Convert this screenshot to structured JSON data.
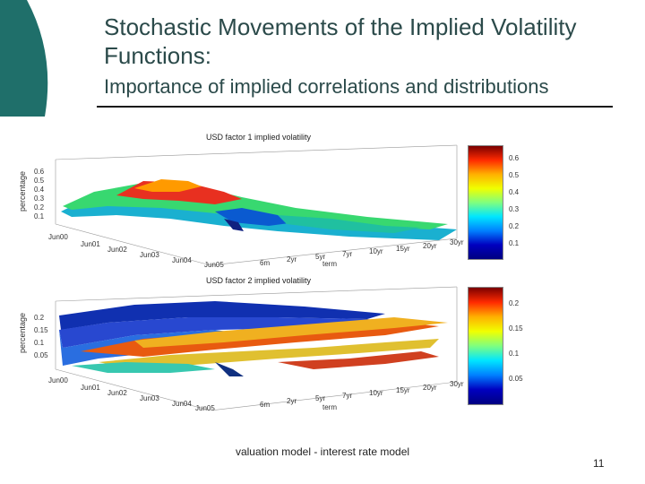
{
  "slide": {
    "title": "Stochastic Movements of the Implied Volatility Functions:",
    "subtitle": "Importance of implied correlations and distributions",
    "footer": "valuation model - interest rate model",
    "page_number": "11"
  },
  "plots": [
    {
      "title": "USD factor 1 implied volatility",
      "ylabel": "percentage",
      "xlabel": "term",
      "yticks": [
        "0.6",
        "0.5",
        "0.4",
        "0.3",
        "0.2",
        "0.1"
      ],
      "date_ticks": [
        "Jun00",
        "Jun01",
        "Jun02",
        "Jun03",
        "Jun04",
        "Jun05"
      ],
      "term_ticks": [
        "6m",
        "2yr",
        "5yr",
        "7yr",
        "10yr",
        "15yr",
        "20yr",
        "30yr"
      ],
      "colorbar_ticks": [
        "0.6",
        "0.5",
        "0.4",
        "0.3",
        "0.2",
        "0.1"
      ]
    },
    {
      "title": "USD factor 2 implied volatility",
      "ylabel": "percentage",
      "xlabel": "term",
      "yticks": [
        "0.2",
        "0.15",
        "0.1",
        "0.05"
      ],
      "date_ticks": [
        "Jun00",
        "Jun01",
        "Jun02",
        "Jun03",
        "Jun04",
        "Jun05"
      ],
      "term_ticks": [
        "6m",
        "2yr",
        "5yr",
        "7yr",
        "10yr",
        "15yr",
        "20yr",
        "30yr"
      ],
      "colorbar_ticks": [
        "0.2",
        "0.15",
        "0.1",
        "0.05"
      ]
    }
  ],
  "colors": {
    "accent": "#1f6f6a",
    "text": "#2b4a4a"
  }
}
